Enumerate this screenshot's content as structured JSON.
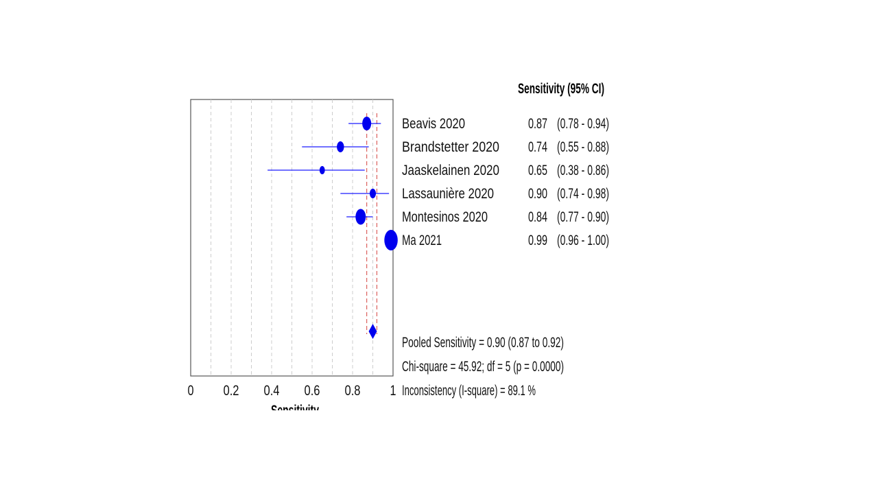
{
  "chart_data": {
    "type": "forest",
    "header": "Sensitivity (95% CI)",
    "xlabel": "Sensitivity",
    "xlim": [
      0,
      1
    ],
    "xticks": [
      "0",
      "0.2",
      "0.4",
      "0.6",
      "0.8",
      "1"
    ],
    "grid": true,
    "studies": [
      {
        "name": "Beavis 2020",
        "estimate": 0.87,
        "lower": 0.78,
        "upper": 0.94,
        "estimate_label": "0.87",
        "ci_label": "(0.78 - 0.94)",
        "weight": 1.0
      },
      {
        "name": "Brandstetter 2020",
        "estimate": 0.74,
        "lower": 0.55,
        "upper": 0.88,
        "estimate_label": "0.74",
        "ci_label": "(0.55 - 0.88)",
        "weight": 0.8
      },
      {
        "name": "Jaaskelainen 2020",
        "estimate": 0.65,
        "lower": 0.38,
        "upper": 0.86,
        "estimate_label": "0.65",
        "ci_label": "(0.38 - 0.86)",
        "weight": 0.6
      },
      {
        "name": "Lassaunière 2020",
        "estimate": 0.9,
        "lower": 0.74,
        "upper": 0.98,
        "estimate_label": "0.90",
        "ci_label": "(0.74 - 0.98)",
        "weight": 0.7
      },
      {
        "name": "Montesinos 2020",
        "estimate": 0.84,
        "lower": 0.77,
        "upper": 0.9,
        "estimate_label": "0.84",
        "ci_label": "(0.77 - 0.90)",
        "weight": 1.15
      },
      {
        "name": "Ma 2021",
        "estimate": 0.99,
        "lower": 0.96,
        "upper": 1.0,
        "estimate_label": "0.99",
        "ci_label": "(0.96 - 1.00)",
        "weight": 1.5
      }
    ],
    "pooled": {
      "estimate": 0.9,
      "lower": 0.87,
      "upper": 0.92
    },
    "stats": [
      "Pooled Sensitivity = 0.90 (0.87 to 0.92)",
      "Chi-square = 45.92; df =  5 (p = 0.0000)",
      "Inconsistency (I-square) = 89.1 %"
    ],
    "colors": {
      "marker": "#0000ee",
      "ci_line": "#1a1aff",
      "pooled_ref": "#d9534f",
      "grid": "#cccccc",
      "frame": "#555555"
    }
  }
}
